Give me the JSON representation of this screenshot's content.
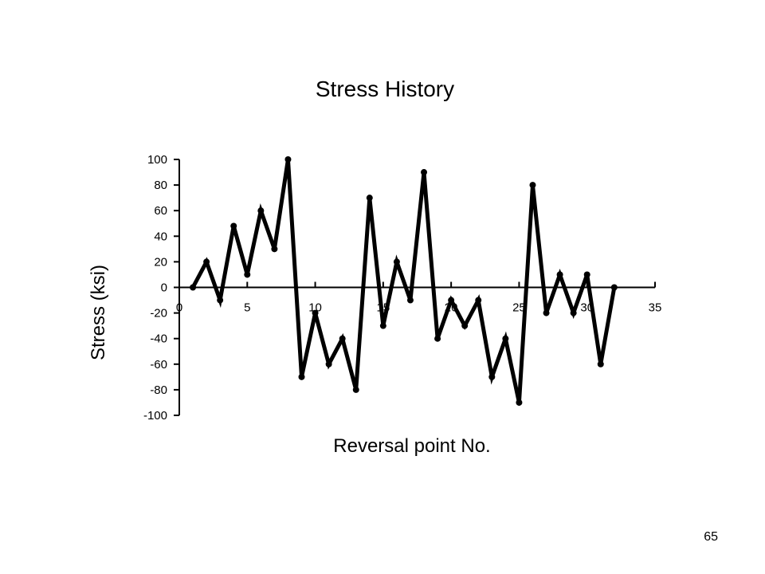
{
  "slide": {
    "page_number": "65"
  },
  "chart_data": {
    "type": "line",
    "title": "Stress History",
    "xlabel": "Reversal point No.",
    "ylabel": "Stress (ksi)",
    "xlim": [
      0,
      35
    ],
    "ylim": [
      -100,
      100
    ],
    "x_ticks": [
      0,
      5,
      10,
      15,
      20,
      25,
      30,
      35
    ],
    "y_ticks": [
      100,
      80,
      60,
      40,
      20,
      0,
      -20,
      -40,
      -60,
      -80,
      -100
    ],
    "grid": false,
    "legend": "none",
    "line_color": "#000000",
    "series": [
      {
        "x": [
          1,
          2,
          3,
          4,
          5,
          6,
          7,
          8,
          9,
          10,
          11,
          12,
          13,
          14,
          15,
          16,
          17,
          18,
          19,
          20,
          21,
          22,
          23,
          24,
          25,
          26,
          27,
          28,
          29,
          30,
          31,
          32
        ],
        "values": [
          0,
          20,
          -10,
          48,
          10,
          60,
          30,
          100,
          -70,
          -20,
          -60,
          -40,
          -80,
          70,
          -30,
          20,
          -10,
          90,
          -40,
          -10,
          -30,
          -10,
          -70,
          -40,
          -90,
          80,
          -20,
          10,
          -20,
          10,
          -60,
          0
        ]
      }
    ]
  }
}
